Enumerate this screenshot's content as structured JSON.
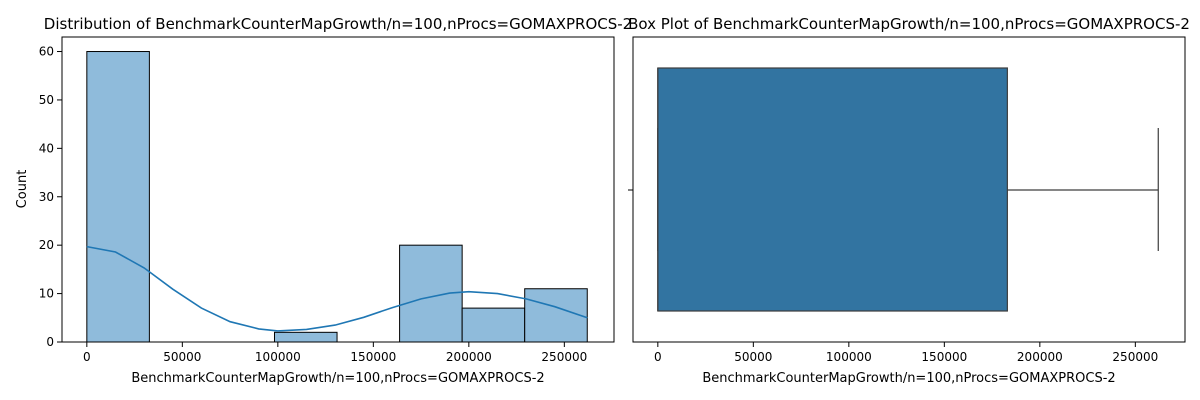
{
  "chart_data": [
    {
      "type": "bar",
      "subtype": "histogram",
      "title": "Distribution of BenchmarkCounterMapGrowth/n=100,nProcs=GOMAXPROCS-2",
      "xlabel": "BenchmarkCounterMapGrowth/n=100,nProcs=GOMAXPROCS-2",
      "ylabel": "Count",
      "xlim": [
        -13000,
        276000
      ],
      "ylim": [
        0,
        63
      ],
      "xticks": [
        0,
        50000,
        100000,
        150000,
        200000,
        250000
      ],
      "yticks": [
        0,
        10,
        20,
        30,
        40,
        50,
        60
      ],
      "bins": [
        {
          "start": 0,
          "end": 32750,
          "count": 60
        },
        {
          "start": 32750,
          "end": 65500,
          "count": 0
        },
        {
          "start": 65500,
          "end": 98250,
          "count": 0
        },
        {
          "start": 98250,
          "end": 131000,
          "count": 2
        },
        {
          "start": 131000,
          "end": 163750,
          "count": 0
        },
        {
          "start": 163750,
          "end": 196500,
          "count": 20
        },
        {
          "start": 196500,
          "end": 229250,
          "count": 7
        },
        {
          "start": 229250,
          "end": 262000,
          "count": 11
        }
      ],
      "kde": {
        "x": [
          0,
          15000,
          30000,
          45000,
          60000,
          75000,
          90000,
          100000,
          115000,
          130000,
          145000,
          160000,
          175000,
          190000,
          200000,
          215000,
          230000,
          245000,
          262000
        ],
        "y": [
          19.7,
          18.6,
          15.3,
          10.9,
          7.0,
          4.2,
          2.7,
          2.3,
          2.6,
          3.5,
          5.1,
          7.1,
          8.9,
          10.1,
          10.4,
          10.0,
          8.9,
          7.3,
          5.0
        ]
      },
      "colors": {
        "bar_fill": "#8fbbdb",
        "bar_edge": "#000000",
        "kde_line": "#1f77b4"
      },
      "grid": false
    },
    {
      "type": "box",
      "title": "Box Plot of BenchmarkCounterMapGrowth/n=100,nProcs=GOMAXPROCS-2",
      "xlabel": "BenchmarkCounterMapGrowth/n=100,nProcs=GOMAXPROCS-2",
      "ylabel": "",
      "xlim": [
        -13000,
        276000
      ],
      "xticks": [
        0,
        50000,
        100000,
        150000,
        200000,
        250000
      ],
      "box": {
        "whisker_low": 0,
        "q1": 0,
        "median": 0,
        "q3": 183000,
        "whisker_high": 262000
      },
      "colors": {
        "box_fill": "#3274a1",
        "line": "#3d3d3d"
      },
      "grid": false
    }
  ]
}
